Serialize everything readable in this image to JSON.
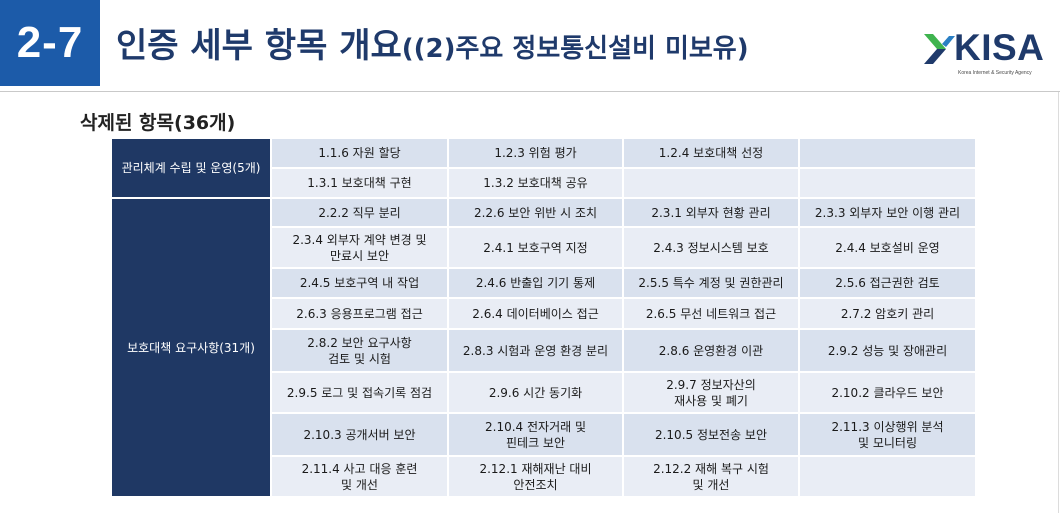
{
  "header": {
    "section_number": "2-7",
    "title_main": "인증 세부 항목 개요",
    "title_sub": "((2)주요 정보통신설비 미보유)"
  },
  "logo": {
    "icon": "kisa-logo-mark",
    "name": "KISA",
    "tagline": "Korea Internet & Security Agency"
  },
  "section_heading": "삭제된 항목(36개)",
  "table": {
    "groups": [
      {
        "label": "관리체계 수립 및 운영(5개)",
        "rows": [
          [
            "1.1.6 자원 할당",
            "1.2.3 위험 평가",
            "1.2.4 보호대책 선정",
            ""
          ],
          [
            "1.3.1 보호대책 구현",
            "1.3.2 보호대책 공유",
            "",
            ""
          ]
        ]
      },
      {
        "label": "보호대책 요구사항(31개)",
        "rows": [
          [
            "2.2.2 직무 분리",
            "2.2.6 보안 위반 시 조치",
            "2.3.1 외부자 현황 관리",
            "2.3.3 외부자 보안 이행 관리"
          ],
          [
            "2.3.4 외부자 계약 변경 및\n만료시 보안",
            "2.4.1 보호구역 지정",
            "2.4.3 정보시스템 보호",
            "2.4.4 보호설비 운영"
          ],
          [
            "2.4.5 보호구역 내 작업",
            "2.4.6 반출입 기기 통제",
            "2.5.5 특수 계정 및 권한관리",
            "2.5.6 접근권한 검토"
          ],
          [
            "2.6.3 응용프로그램 접근",
            "2.6.4 데이터베이스 접근",
            "2.6.5 무선 네트워크 접근",
            "2.7.2 암호키 관리"
          ],
          [
            "2.8.2 보안 요구사항\n검토 및 시험",
            "2.8.3 시험과 운영 환경 분리",
            "2.8.6 운영환경 이관",
            "2.9.2 성능 및 장애관리"
          ],
          [
            "2.9.5 로그 및 접속기록 점검",
            "2.9.6 시간 동기화",
            "2.9.7 정보자산의\n재사용 및 폐기",
            "2.10.2 클라우드 보안"
          ],
          [
            "2.10.3 공개서버 보안",
            "2.10.4 전자거래 및\n핀테크 보안",
            "2.10.5 정보전송 보안",
            "2.11.3 이상행위 분석\n및 모니터링"
          ],
          [
            "2.11.4 사고 대응 훈련\n및 개선",
            "2.12.1 재해재난 대비\n안전조치",
            "2.12.2 재해 복구 시험\n및 개선",
            ""
          ]
        ]
      }
    ]
  },
  "colors": {
    "section_box": "#1c5ba9",
    "title_navy": "#1f3a6b",
    "group_header": "#1f3864",
    "row_dark": "#d9e1ee",
    "row_light": "#e9edf5",
    "logo_green": "#3fb34f",
    "logo_navy": "#1f3a6b"
  }
}
